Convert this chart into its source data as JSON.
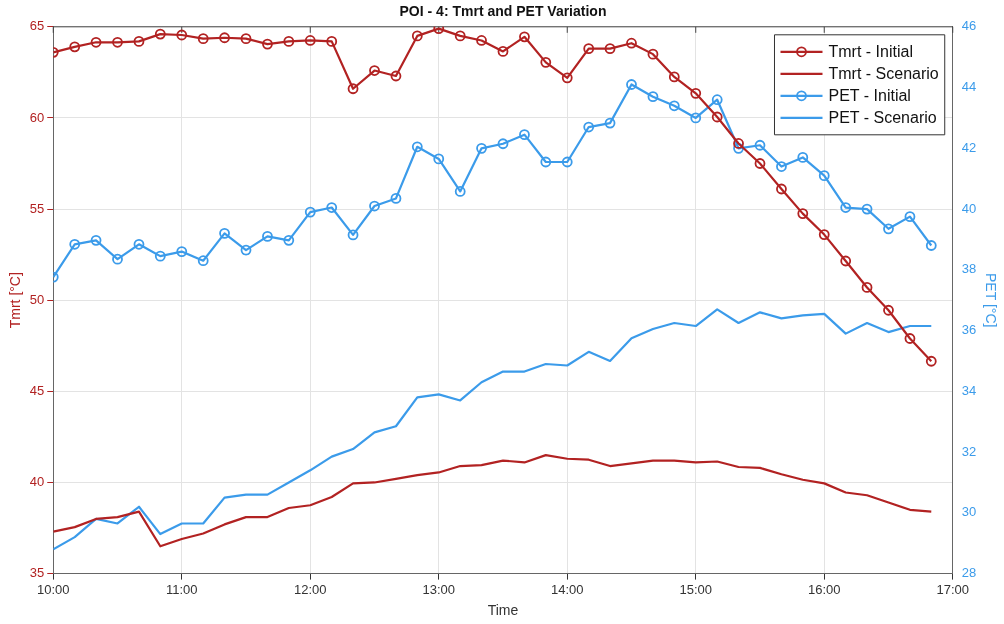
{
  "chart_data": {
    "type": "line",
    "title": "POI - 4: Tmrt and PET Variation",
    "xlabel": "Time",
    "ylabel": "Tmrt [°C]",
    "y2label": "PET [°C]",
    "x": [
      10,
      10.167,
      10.333,
      10.5,
      10.667,
      10.833,
      11,
      11.167,
      11.333,
      11.5,
      11.667,
      11.833,
      12,
      12.167,
      12.333,
      12.5,
      12.667,
      12.833,
      13,
      13.167,
      13.333,
      13.5,
      13.667,
      13.833,
      14,
      14.167,
      14.333,
      14.5,
      14.667,
      14.833,
      15,
      15.167,
      15.333,
      15.5,
      15.667,
      15.833,
      16,
      16.167,
      16.333,
      16.5,
      16.667,
      16.833
    ],
    "series": [
      {
        "name": "Tmrt - Initial",
        "color": "#b22222",
        "marker": "circle",
        "values": [
          63.6,
          63.9,
          64.15,
          64.15,
          64.2,
          64.6,
          64.55,
          64.35,
          64.4,
          64.35,
          64.05,
          64.2,
          64.25,
          64.2,
          61.6,
          62.6,
          62.3,
          64.5,
          64.9,
          64.5,
          64.25,
          63.65,
          64.45,
          63.05,
          62.2,
          63.8,
          63.8,
          64.1,
          63.5,
          62.25,
          61.35,
          60.05,
          58.6,
          57.5,
          56.1,
          54.75,
          53.6,
          52.15,
          50.7,
          49.45,
          47.9,
          46.65
        ]
      },
      {
        "name": "Tmrt - Scenario",
        "color": "#b22222",
        "marker": "none",
        "values": [
          37.3,
          37.55,
          38.0,
          38.1,
          38.4,
          36.5,
          36.9,
          37.2,
          37.7,
          38.1,
          38.1,
          38.6,
          38.75,
          39.2,
          39.95,
          40.0,
          40.2,
          40.4,
          40.55,
          40.9,
          40.95,
          41.2,
          41.1,
          41.5,
          41.3,
          41.25,
          40.9,
          41.05,
          41.2,
          41.2,
          41.1,
          41.15,
          40.85,
          40.8,
          40.45,
          40.15,
          39.95,
          39.45,
          39.3,
          38.9,
          38.5,
          38.4
        ]
      },
      {
        "name": "PET - Initial",
        "color": "#3b9bea",
        "marker": "circle",
        "axis": "y2",
        "values": [
          37.76,
          38.84,
          38.97,
          38.35,
          38.84,
          38.45,
          38.6,
          38.3,
          39.2,
          38.65,
          39.1,
          38.97,
          39.9,
          40.05,
          39.15,
          40.1,
          40.35,
          42.05,
          41.65,
          40.58,
          42.0,
          42.15,
          42.45,
          41.55,
          41.55,
          42.7,
          42.83,
          44.1,
          43.7,
          43.4,
          43.0,
          43.6,
          42.0,
          42.1,
          41.4,
          41.7,
          41.1,
          40.05,
          40.0,
          39.35,
          39.75,
          38.8
        ]
      },
      {
        "name": "PET - Scenario",
        "color": "#3b9bea",
        "marker": "none",
        "axis": "y2",
        "values": [
          28.8,
          29.2,
          29.8,
          29.65,
          30.2,
          29.3,
          29.65,
          29.65,
          30.5,
          30.6,
          30.6,
          31.0,
          31.4,
          31.85,
          32.1,
          32.65,
          32.85,
          33.8,
          33.9,
          33.7,
          34.3,
          34.65,
          34.65,
          34.9,
          34.85,
          35.3,
          35.0,
          35.75,
          36.05,
          36.25,
          36.15,
          36.7,
          36.25,
          36.6,
          36.4,
          36.5,
          36.55,
          35.9,
          36.25,
          35.95,
          36.15,
          36.15
        ]
      }
    ],
    "xlim": [
      10,
      17
    ],
    "xticks": [
      {
        "value": 10,
        "label": "10:00"
      },
      {
        "value": 11,
        "label": "11:00"
      },
      {
        "value": 12,
        "label": "12:00"
      },
      {
        "value": 13,
        "label": "13:00"
      },
      {
        "value": 14,
        "label": "14:00"
      },
      {
        "value": 15,
        "label": "15:00"
      },
      {
        "value": 16,
        "label": "16:00"
      },
      {
        "value": 17,
        "label": "17:00"
      }
    ],
    "ylim": [
      35,
      65
    ],
    "yticks": [
      35,
      40,
      45,
      50,
      55,
      60,
      65
    ],
    "y2lim": [
      28,
      46
    ],
    "y2ticks": [
      28,
      30,
      32,
      34,
      36,
      38,
      40,
      42,
      44,
      46
    ],
    "grid": true,
    "legend": "top right"
  }
}
